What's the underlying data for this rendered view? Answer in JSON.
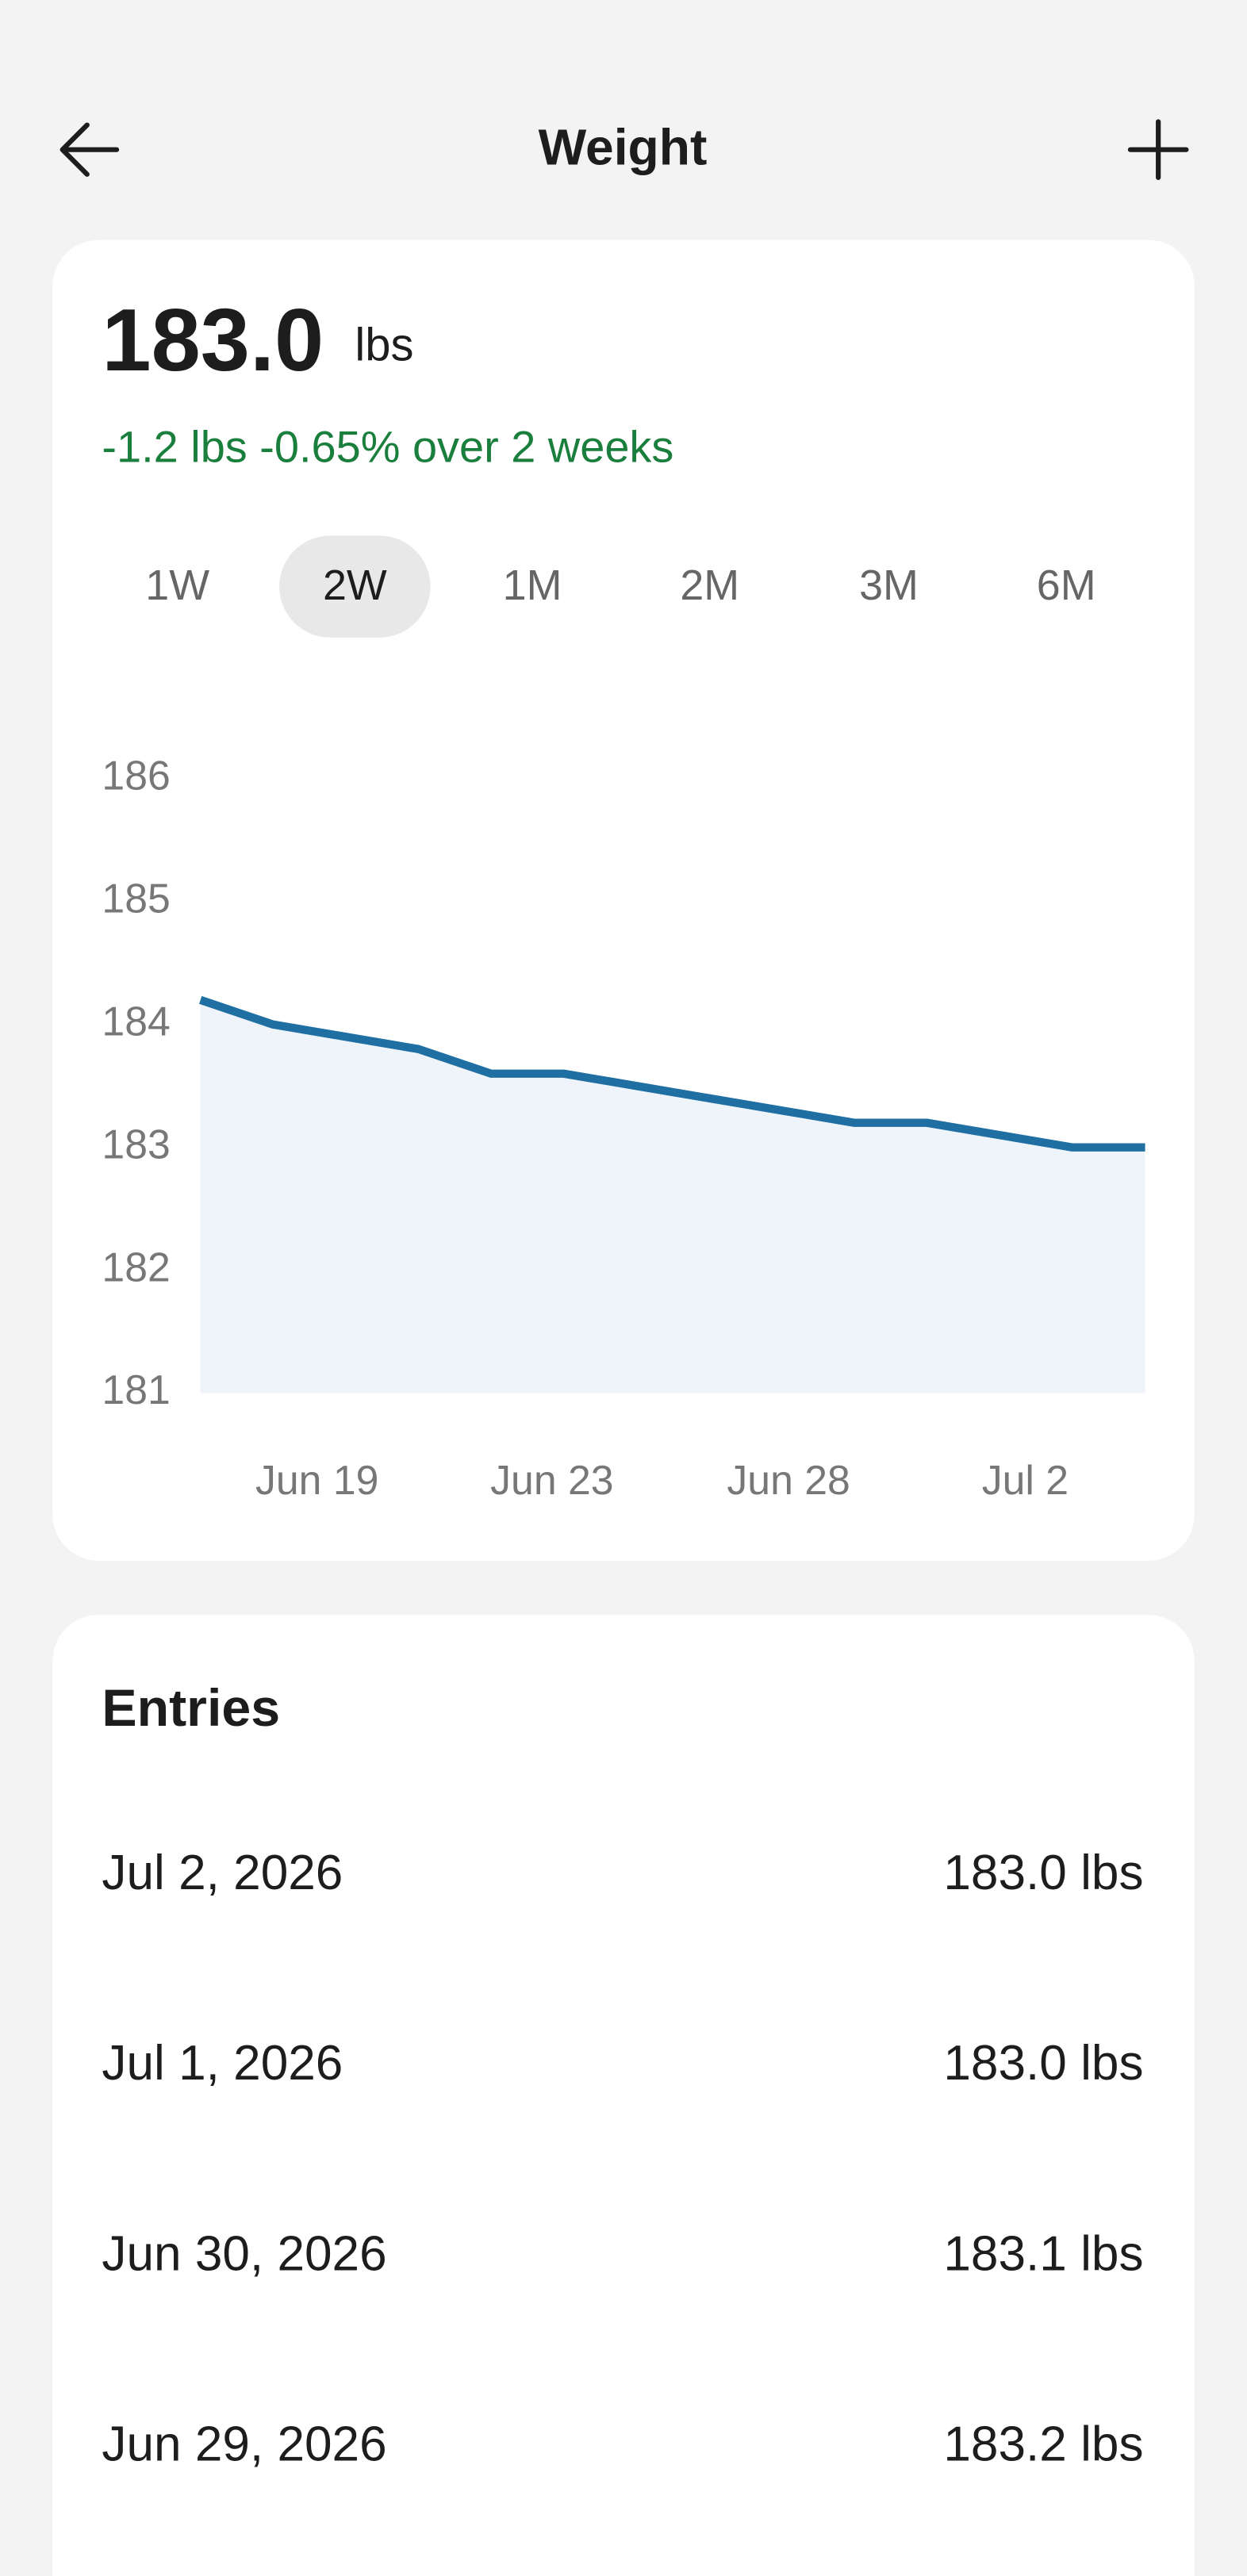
{
  "header": {
    "title": "Weight"
  },
  "summary": {
    "value": "183.0",
    "unit": "lbs",
    "change": "-1.2 lbs -0.65% over 2 weeks"
  },
  "tabs": {
    "items": [
      "1W",
      "2W",
      "1M",
      "2M",
      "3M",
      "6M"
    ],
    "selected": 1
  },
  "chart_data": {
    "type": "area",
    "values": [
      184.2,
      184.0,
      183.9,
      183.8,
      183.6,
      183.6,
      183.5,
      183.4,
      183.3,
      183.2,
      183.2,
      183.1,
      183.0,
      183.0
    ],
    "xtick_labels": [
      "Jun 19",
      "Jun 23",
      "Jun 28",
      "Jul 2"
    ],
    "ylim": [
      181,
      186
    ],
    "yticks": [
      181,
      182,
      183,
      184,
      185,
      186
    ],
    "color": "#1f6fa3",
    "fill": "#eef4fa"
  },
  "entries": {
    "title": "Entries",
    "rows": [
      [
        "Jul 2, 2026",
        "183.0 lbs"
      ],
      [
        "Jul 1, 2026",
        "183.0 lbs"
      ],
      [
        "Jun 30, 2026",
        "183.1 lbs"
      ],
      [
        "Jun 29, 2026",
        "183.2 lbs"
      ]
    ]
  }
}
